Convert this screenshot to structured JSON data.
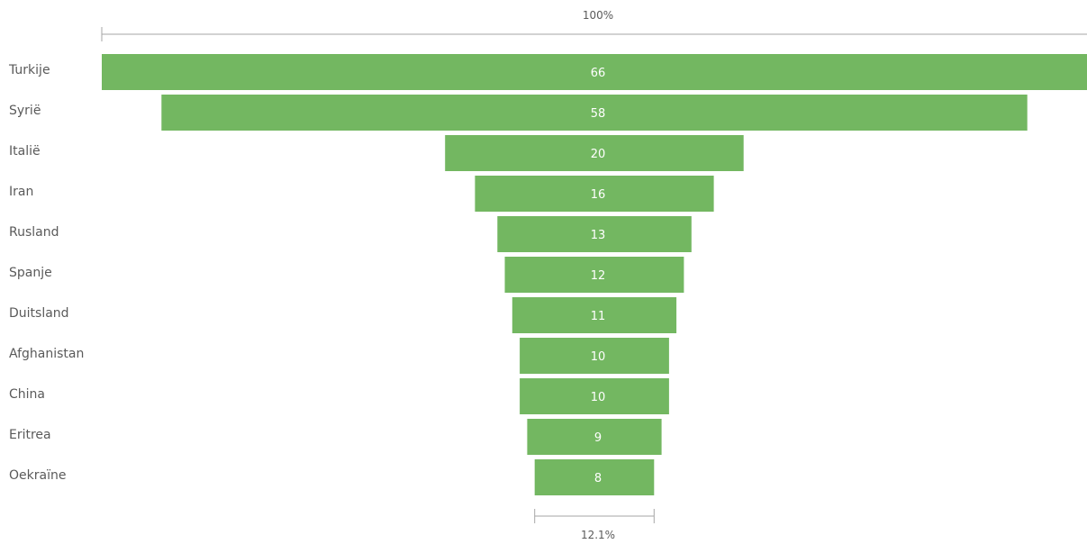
{
  "chart_data": {
    "type": "bar",
    "subtype": "funnel",
    "categories": [
      "Turkije",
      "Syrië",
      "Italië",
      "Iran",
      "Rusland",
      "Spanje",
      "Duitsland",
      "Afghanistan",
      "China",
      "Eritrea",
      "Oekraïne"
    ],
    "values": [
      66,
      58,
      20,
      16,
      13,
      12,
      11,
      10,
      10,
      9,
      8
    ],
    "top_percent_label": "100%",
    "bottom_percent_label": "12.1%",
    "bar_color": "#73b761",
    "value_label_color": "#ffffff",
    "grid": false,
    "legend": "none"
  }
}
